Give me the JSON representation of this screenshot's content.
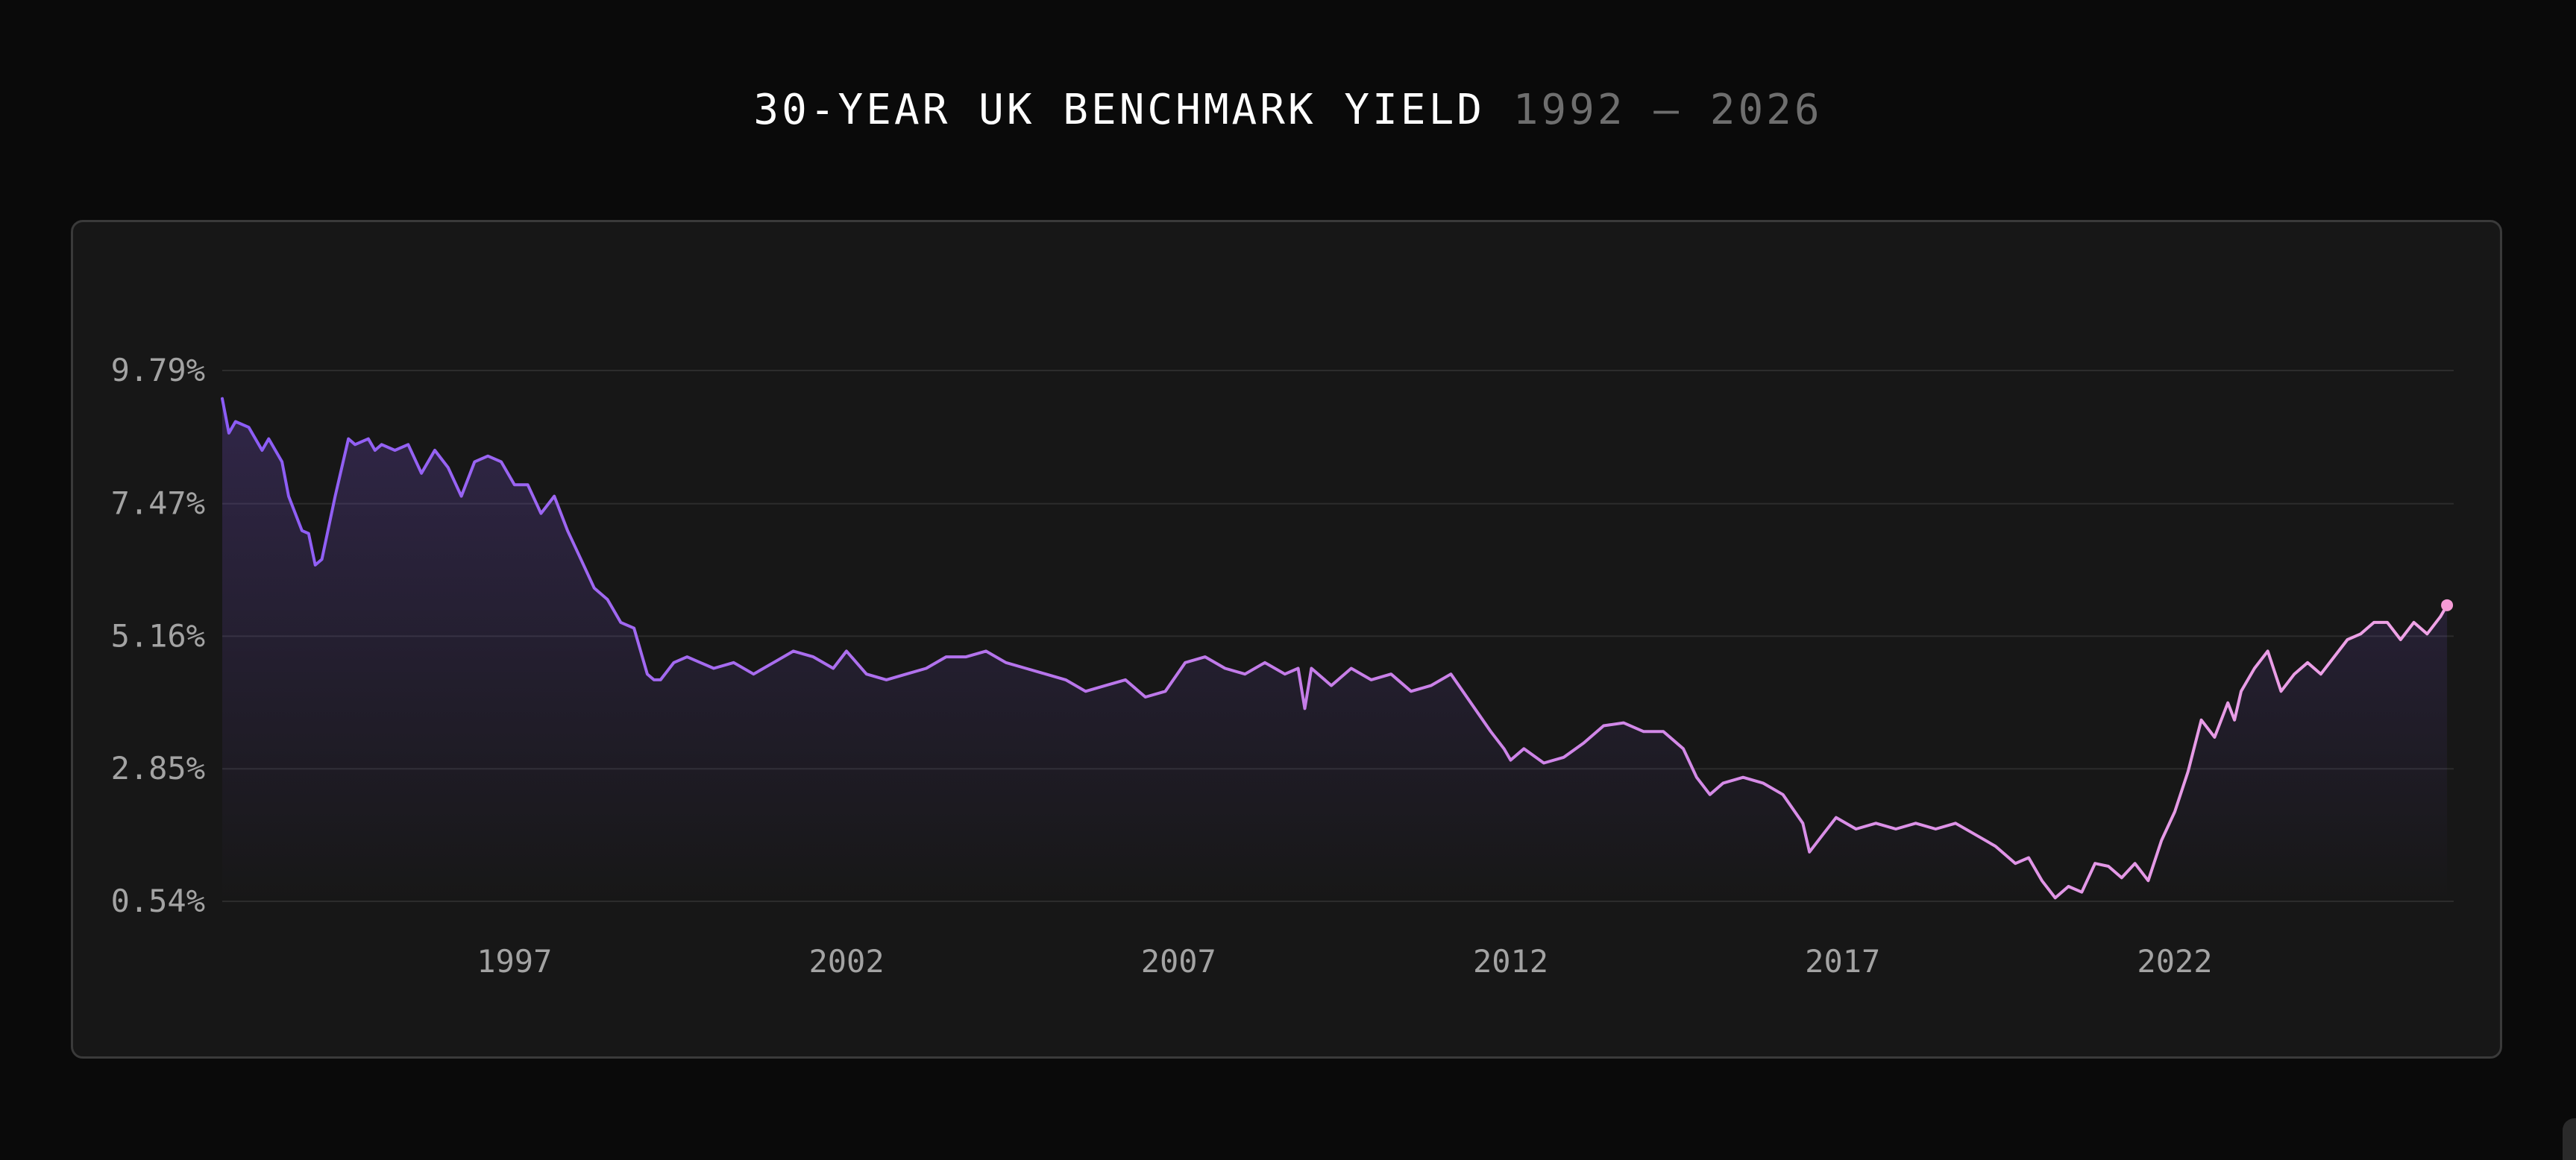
{
  "title": {
    "main": "30-YEAR UK BENCHMARK YIELD",
    "range": "1992 — 2026"
  },
  "colors": {
    "background": "#0a0a0a",
    "card": "#171717",
    "line_start": "#8b5cf6",
    "line_end": "#f0a3e6",
    "marker": "#f59bd6",
    "grid": "#2c2c2c",
    "labels": "#a3a3a3"
  },
  "chart_data": {
    "type": "line",
    "title": "30-YEAR UK BENCHMARK YIELD",
    "subtitle": "1992 — 2026",
    "xlabel": "",
    "ylabel": "",
    "xlim": [
      1992.6,
      2026.2
    ],
    "ylim": [
      0.54,
      9.79
    ],
    "y_ticks": [
      0.54,
      2.85,
      5.16,
      7.47,
      9.79
    ],
    "y_tick_labels": [
      "0.54%",
      "2.85%",
      "5.16%",
      "7.47%",
      "9.79%"
    ],
    "x_ticks": [
      1997,
      2002,
      2007,
      2012,
      2017,
      2022
    ],
    "x_tick_labels": [
      "1997",
      "2002",
      "2007",
      "2012",
      "2017",
      "2022"
    ],
    "grid": true,
    "legend": "none",
    "end_marker": true,
    "series": [
      {
        "x": [
          1992.6,
          1992.7,
          1992.8,
          1993.0,
          1993.2,
          1993.3,
          1993.5,
          1993.6,
          1993.8,
          1993.9,
          1994.0,
          1994.1,
          1994.3,
          1994.5,
          1994.6,
          1994.8,
          1994.9,
          1995.0,
          1995.2,
          1995.4,
          1995.6,
          1995.8,
          1996.0,
          1996.2,
          1996.4,
          1996.6,
          1996.8,
          1997.0,
          1997.2,
          1997.4,
          1997.6,
          1997.8,
          1998.0,
          1998.2,
          1998.4,
          1998.6,
          1998.8,
          1999.0,
          1999.1,
          1999.2,
          1999.4,
          1999.6,
          1999.8,
          2000.0,
          2000.3,
          2000.6,
          2000.9,
          2001.2,
          2001.5,
          2001.8,
          2002.0,
          2002.3,
          2002.6,
          2002.9,
          2003.2,
          2003.5,
          2003.8,
          2004.1,
          2004.4,
          2004.7,
          2005.0,
          2005.3,
          2005.6,
          2005.9,
          2006.2,
          2006.5,
          2006.8,
          2007.1,
          2007.4,
          2007.7,
          2008.0,
          2008.3,
          2008.6,
          2008.8,
          2008.9,
          2009.0,
          2009.3,
          2009.6,
          2009.9,
          2010.2,
          2010.5,
          2010.8,
          2011.1,
          2011.4,
          2011.7,
          2011.9,
          2012.0,
          2012.2,
          2012.5,
          2012.8,
          2013.1,
          2013.4,
          2013.7,
          2014.0,
          2014.3,
          2014.6,
          2014.8,
          2015.0,
          2015.2,
          2015.5,
          2015.8,
          2016.1,
          2016.4,
          2016.5,
          2016.7,
          2016.9,
          2017.2,
          2017.5,
          2017.8,
          2018.1,
          2018.4,
          2018.7,
          2019.0,
          2019.3,
          2019.6,
          2019.8,
          2020.0,
          2020.2,
          2020.4,
          2020.6,
          2020.8,
          2021.0,
          2021.2,
          2021.4,
          2021.6,
          2021.8,
          2022.0,
          2022.2,
          2022.4,
          2022.6,
          2022.8,
          2022.9,
          2023.0,
          2023.2,
          2023.4,
          2023.6,
          2023.8,
          2024.0,
          2024.2,
          2024.4,
          2024.6,
          2024.8,
          2025.0,
          2025.2,
          2025.4,
          2025.6,
          2025.8,
          2026.0,
          2026.1
        ],
        "values": [
          9.3,
          8.7,
          8.9,
          8.8,
          8.4,
          8.6,
          8.2,
          7.6,
          7.0,
          6.95,
          6.4,
          6.5,
          7.6,
          8.6,
          8.5,
          8.6,
          8.4,
          8.5,
          8.4,
          8.5,
          8.0,
          8.4,
          8.1,
          7.6,
          8.2,
          8.3,
          8.2,
          7.8,
          7.8,
          7.3,
          7.6,
          7.0,
          6.5,
          6.0,
          5.8,
          5.4,
          5.3,
          4.5,
          4.4,
          4.4,
          4.7,
          4.8,
          4.7,
          4.6,
          4.7,
          4.5,
          4.7,
          4.9,
          4.8,
          4.6,
          4.9,
          4.5,
          4.4,
          4.5,
          4.6,
          4.8,
          4.8,
          4.9,
          4.7,
          4.6,
          4.5,
          4.4,
          4.2,
          4.3,
          4.4,
          4.1,
          4.2,
          4.7,
          4.8,
          4.6,
          4.5,
          4.7,
          4.5,
          4.6,
          3.9,
          4.6,
          4.3,
          4.6,
          4.4,
          4.5,
          4.2,
          4.3,
          4.5,
          4.0,
          3.5,
          3.2,
          3.0,
          3.2,
          2.95,
          3.05,
          3.3,
          3.6,
          3.65,
          3.5,
          3.5,
          3.2,
          2.7,
          2.4,
          2.6,
          2.7,
          2.6,
          2.4,
          1.9,
          1.4,
          1.7,
          2.0,
          1.8,
          1.9,
          1.8,
          1.9,
          1.8,
          1.9,
          1.7,
          1.5,
          1.2,
          1.3,
          0.9,
          0.6,
          0.8,
          0.7,
          1.2,
          1.15,
          0.95,
          1.2,
          0.9,
          1.6,
          2.1,
          2.8,
          3.7,
          3.4,
          4.0,
          3.7,
          4.2,
          4.6,
          4.9,
          4.2,
          4.5,
          4.7,
          4.5,
          4.8,
          5.1,
          5.2,
          5.4,
          5.4,
          5.1,
          5.4,
          5.2,
          5.5,
          5.7
        ]
      }
    ]
  }
}
